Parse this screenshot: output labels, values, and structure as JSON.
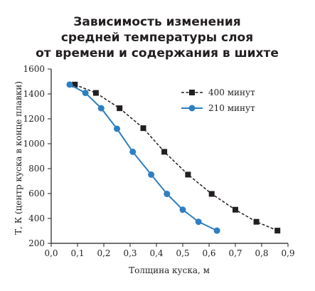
{
  "chart_data": {
    "type": "line",
    "title_lines": [
      "Зависимость изменения",
      "средней температуры слоя",
      "от времени и содержания в шихте"
    ],
    "xlabel": "Толщина куска, м",
    "ylabel": "Т, К (центр куска в конце плавки)",
    "xlim": [
      0.0,
      0.9
    ],
    "ylim": [
      200,
      1600
    ],
    "x_ticks": [
      "0,0",
      "0,1",
      "0,2",
      "0,3",
      "0,4",
      "0,5",
      "0,6",
      "0,7",
      "0,8",
      "0,9"
    ],
    "y_ticks": [
      "200",
      "400",
      "600",
      "800",
      "1000",
      "1200",
      "1400",
      "1600"
    ],
    "grid": false,
    "legend_position": "top-right",
    "series": [
      {
        "name": "400 минут",
        "color": "#231f20",
        "marker": "square",
        "line_style": "dashed",
        "x": [
          0.09,
          0.17,
          0.26,
          0.35,
          0.43,
          0.52,
          0.61,
          0.7,
          0.78,
          0.86
        ],
        "y": [
          1475,
          1408,
          1285,
          1125,
          935,
          752,
          597,
          470,
          373,
          302
        ]
      },
      {
        "name": "210 минут",
        "color": "#2e7fc2",
        "marker": "circle",
        "line_style": "solid",
        "x": [
          0.07,
          0.13,
          0.19,
          0.25,
          0.31,
          0.38,
          0.44,
          0.5,
          0.56,
          0.63
        ],
        "y": [
          1475,
          1408,
          1285,
          1120,
          935,
          752,
          597,
          470,
          373,
          302
        ]
      }
    ]
  }
}
